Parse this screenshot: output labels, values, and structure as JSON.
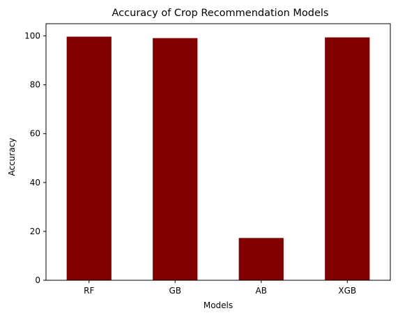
{
  "chart_data": {
    "type": "bar",
    "title": "Accuracy of Crop Recommendation Models",
    "xlabel": "Models",
    "ylabel": "Accuracy",
    "categories": [
      "RF",
      "GB",
      "AB",
      "XGB"
    ],
    "values": [
      99.7,
      99.1,
      17.3,
      99.4
    ],
    "ylim": [
      0,
      105
    ],
    "yticks": [
      0,
      20,
      40,
      60,
      80,
      100
    ],
    "bar_color": "#800000",
    "grid": false,
    "legend": "none"
  }
}
